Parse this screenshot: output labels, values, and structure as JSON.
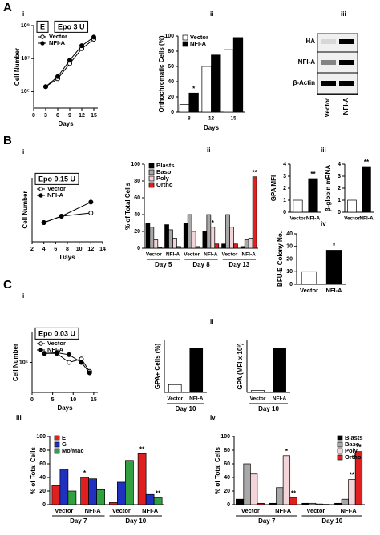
{
  "panels": [
    "A",
    "B",
    "C"
  ],
  "blot": {
    "subpanel": "iii",
    "rows": [
      "HA",
      "NFI-A",
      "β-Actin"
    ],
    "lanes": [
      "Vector",
      "NFI-A"
    ]
  },
  "chart_data": [
    {
      "type": "line",
      "subpanel": "i",
      "tags": [
        "E",
        "Epo 3 U"
      ],
      "xlabel": "Days",
      "ylabel": "Cell Number",
      "x": [
        3,
        6,
        9,
        12,
        15
      ],
      "xlim": [
        0,
        16
      ],
      "xticks": [
        0,
        3,
        6,
        9,
        12,
        15
      ],
      "log_y": true,
      "ylim": [
        10000,
        1000000000
      ],
      "yticks": [
        {
          "value": 100000,
          "label": "10⁵"
        },
        {
          "value": 10000000,
          "label": "10⁷"
        },
        {
          "value": 1000000000,
          "label": "10⁹"
        }
      ],
      "series": [
        {
          "name": "Vector",
          "color": "#000000",
          "marker_fill": "#ffffff",
          "values": [
            200000,
            600000,
            5000000,
            40000000,
            150000000
          ]
        },
        {
          "name": "NFI-A",
          "color": "#000000",
          "marker_fill": "#000000",
          "values": [
            200000,
            800000,
            8000000,
            60000000,
            200000000
          ]
        }
      ]
    },
    {
      "type": "bar",
      "subpanel": "ii",
      "xlabel": "Days",
      "ylabel": "Orthochromatic Cells (%)",
      "categories": [
        "8",
        "12",
        "15"
      ],
      "ylim": [
        0,
        100
      ],
      "yticks": [
        0,
        20,
        40,
        60,
        80,
        100
      ],
      "legend": "top-left",
      "series": [
        {
          "name": "Vector",
          "color": "#ffffff",
          "values": [
            10,
            60,
            82
          ]
        },
        {
          "name": "NFI-A",
          "color": "#000000",
          "values": [
            25,
            75,
            98
          ]
        }
      ],
      "annotations": [
        {
          "label": "*",
          "series": 1,
          "index": 0
        }
      ]
    },
    {
      "type": "line",
      "subpanel": "i",
      "tags": [
        "Epo 0.15 U"
      ],
      "xlabel": "Days",
      "ylabel": "Cell Number",
      "x": [
        4,
        7,
        12
      ],
      "xlim": [
        2,
        14
      ],
      "xticks": [
        2,
        4,
        6,
        8,
        10,
        12,
        14
      ],
      "log_y": false,
      "ylim": [
        0,
        1
      ],
      "series": [
        {
          "name": "Vector",
          "color": "#000000",
          "marker_fill": "#ffffff",
          "values": [
            0.3,
            0.4,
            0.45
          ]
        },
        {
          "name": "NFI-A",
          "color": "#000000",
          "marker_fill": "#000000",
          "values": [
            0.3,
            0.4,
            0.62
          ]
        }
      ]
    },
    {
      "type": "bar",
      "subpanel": "ii",
      "ylabel": "% of Total Cells",
      "categories": [
        "Vector",
        "NFI-A",
        "Vector",
        "NFI-A",
        "Vector",
        "NFI-A"
      ],
      "groups": [
        "Day 5",
        "Day 8",
        "Day 13"
      ],
      "ylim": [
        0,
        100
      ],
      "yticks": [
        0,
        20,
        40,
        60,
        80,
        100
      ],
      "legend": "top-left",
      "series": [
        {
          "name": "Blasts",
          "color": "#000000",
          "values": [
            30,
            28,
            30,
            20,
            5,
            2
          ]
        },
        {
          "name": "Baso",
          "color": "#a8a8a8",
          "values": [
            25,
            22,
            40,
            40,
            40,
            10
          ]
        },
        {
          "name": "Poly",
          "color": "#f4d4d8",
          "values": [
            10,
            12,
            20,
            25,
            25,
            12
          ]
        },
        {
          "name": "Ortho",
          "color": "#e02020",
          "values": [
            1,
            2,
            2,
            5,
            5,
            85
          ]
        }
      ],
      "annotations": [
        {
          "label": "*",
          "series": 2,
          "index": 3
        },
        {
          "label": "**",
          "series": 3,
          "index": 5
        }
      ]
    },
    {
      "type": "bar",
      "subpanel": "iii",
      "ylabel": "GPA MFI",
      "categories": [
        "Vector",
        "NFI-A"
      ],
      "values": [
        1,
        2.8
      ],
      "colors": [
        "#ffffff",
        "#000000"
      ],
      "ylim": [
        0,
        4
      ],
      "yticks": [
        0,
        1,
        2,
        3,
        4
      ],
      "annotations": [
        {
          "label": "**",
          "index": 1
        }
      ]
    },
    {
      "type": "bar",
      "ylabel": "β-globin mRNA",
      "categories": [
        "Vector",
        "NFI-A"
      ],
      "values": [
        1,
        3.8
      ],
      "colors": [
        "#ffffff",
        "#000000"
      ],
      "ylim": [
        0,
        4
      ],
      "yticks": [
        0,
        1,
        2,
        3,
        4
      ],
      "annotations": [
        {
          "label": "**",
          "index": 1
        }
      ]
    },
    {
      "type": "bar",
      "subpanel": "iv",
      "ylabel": "BFU-E Colony No.",
      "categories": [
        "Vector",
        "NFI-A"
      ],
      "values": [
        10,
        27
      ],
      "colors": [
        "#ffffff",
        "#000000"
      ],
      "ylim": [
        0,
        40
      ],
      "yticks": [
        0,
        10,
        20,
        30,
        40
      ],
      "annotations": [
        {
          "label": "*",
          "index": 1
        }
      ]
    },
    {
      "type": "line",
      "subpanel": "i",
      "tags": [
        "Epo 0.03 U"
      ],
      "xlabel": "Days",
      "ylabel": "Cell Number",
      "x": [
        3,
        6,
        9,
        12,
        14
      ],
      "xlim": [
        0,
        16
      ],
      "xticks": [
        0,
        5,
        10,
        15
      ],
      "log_y": true,
      "ylim": [
        10000,
        1000000
      ],
      "yticks": [
        {
          "value": 100000,
          "label": "10⁵"
        }
      ],
      "series": [
        {
          "name": "Vector",
          "color": "#000000",
          "marker_fill": "#ffffff",
          "values": [
            200000,
            200000,
            100000,
            130000,
            50000
          ]
        },
        {
          "name": "NFI-A",
          "color": "#000000",
          "marker_fill": "#000000",
          "values": [
            200000,
            210000,
            180000,
            100000,
            45000
          ]
        }
      ]
    },
    {
      "type": "bar",
      "subpanel": "ii",
      "ylabel": "GPA+ Cells (%)",
      "categories": [
        "Vector",
        "NFI-A"
      ],
      "groups": [
        "Day 10"
      ],
      "values": [
        3,
        17
      ],
      "colors": [
        "#ffffff",
        "#000000"
      ],
      "ylim": [
        0,
        20
      ]
    },
    {
      "type": "bar",
      "ylabel": "GPA (MFI x 10³)",
      "categories": [
        "Vector",
        "NFI-A"
      ],
      "groups": [
        "Day 10"
      ],
      "values": [
        3,
        68
      ],
      "colors": [
        "#ffffff",
        "#000000"
      ],
      "ylim": [
        0,
        80
      ]
    },
    {
      "type": "bar",
      "subpanel": "iii",
      "ylabel": "% of Total Cells",
      "categories": [
        "Vector",
        "NFI-A",
        "Vector",
        "NFI-A"
      ],
      "groups": [
        "Day 7",
        "Day 10"
      ],
      "ylim": [
        0,
        100
      ],
      "yticks": [
        0,
        20,
        40,
        60,
        80,
        100
      ],
      "legend": "top-left",
      "series": [
        {
          "name": "E",
          "color": "#e02020",
          "values": [
            28,
            40,
            3,
            75
          ]
        },
        {
          "name": "G",
          "color": "#2030c0",
          "values": [
            52,
            38,
            33,
            15
          ]
        },
        {
          "name": "Mo/Mac",
          "color": "#30a040",
          "values": [
            20,
            22,
            65,
            10
          ]
        }
      ],
      "annotations": [
        {
          "label": "*",
          "series": 0,
          "index": 1
        },
        {
          "label": "**",
          "series": 0,
          "index": 3
        },
        {
          "label": "**",
          "series": 2,
          "index": 3
        }
      ]
    },
    {
      "type": "bar",
      "subpanel": "iv",
      "ylabel": "% of Total Cells",
      "categories": [
        "Vector",
        "NFI-A",
        "Vector",
        "NFI-A"
      ],
      "groups": [
        "Day 7",
        "Day 10"
      ],
      "ylim": [
        0,
        100
      ],
      "yticks": [
        0,
        20,
        40,
        60,
        80,
        100
      ],
      "legend": "top-right",
      "series": [
        {
          "name": "Blasts",
          "color": "#000000",
          "values": [
            8,
            2,
            2,
            2
          ]
        },
        {
          "name": "Baso",
          "color": "#a8a8a8",
          "values": [
            60,
            25,
            2,
            8
          ]
        },
        {
          "name": "Poly",
          "color": "#f4d4d8",
          "values": [
            45,
            72,
            1,
            37
          ]
        },
        {
          "name": "Ortho",
          "color": "#e02020",
          "values": [
            2,
            10,
            0.5,
            78
          ]
        }
      ],
      "annotations": [
        {
          "label": "*",
          "series": 2,
          "index": 1
        },
        {
          "label": "**",
          "series": 3,
          "index": 1
        },
        {
          "label": "**",
          "series": 2,
          "index": 3
        },
        {
          "label": "**",
          "series": 3,
          "index": 3
        }
      ]
    }
  ]
}
